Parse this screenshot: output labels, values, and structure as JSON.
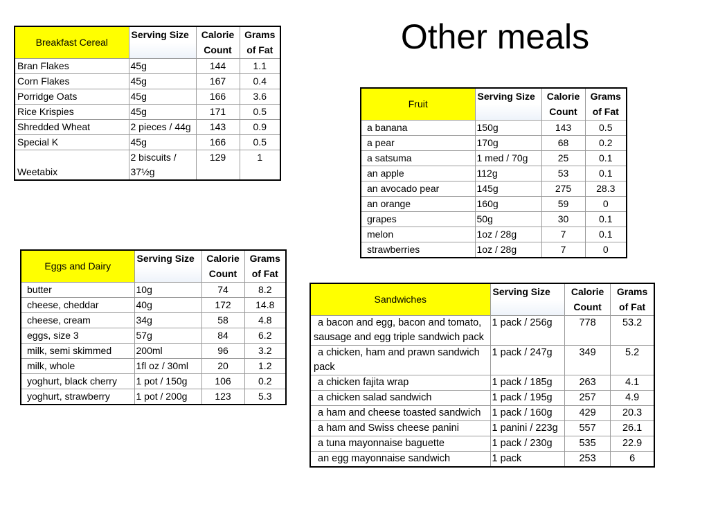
{
  "title": "Other meals",
  "tables": {
    "cereal": {
      "headers": [
        "Breakfast Cereal",
        "Serving Size",
        "Calorie Count",
        "Grams of Fat"
      ],
      "rows": [
        [
          "Bran Flakes",
          "45g",
          "144",
          "1.1"
        ],
        [
          "Corn Flakes",
          "45g",
          "167",
          "0.4"
        ],
        [
          "Porridge Oats",
          "45g",
          "166",
          "3.6"
        ],
        [
          "Rice Krispies",
          "45g",
          "171",
          "0.5"
        ],
        [
          "Shredded Wheat",
          "2 pieces / 44g",
          "143",
          "0.9"
        ],
        [
          "Special K",
          "45g",
          "166",
          "0.5"
        ],
        [
          "Weetabix",
          "2 biscuits / 37½g",
          "129",
          "1"
        ]
      ]
    },
    "fruit": {
      "headers": [
        "Fruit",
        "Serving Size",
        "Calorie Count",
        "Grams of Fat"
      ],
      "rows": [
        [
          "a banana",
          "150g",
          "143",
          "0.5"
        ],
        [
          "a pear",
          "170g",
          "68",
          "0.2"
        ],
        [
          "a satsuma",
          "1 med / 70g",
          "25",
          "0.1"
        ],
        [
          "an apple",
          "112g",
          "53",
          "0.1"
        ],
        [
          "an avocado pear",
          "145g",
          "275",
          "28.3"
        ],
        [
          "an orange",
          "160g",
          "59",
          "0"
        ],
        [
          "grapes",
          "50g",
          "30",
          "0.1"
        ],
        [
          "melon",
          "1oz / 28g",
          "7",
          "0.1"
        ],
        [
          "strawberries",
          "1oz / 28g",
          "7",
          "0"
        ]
      ]
    },
    "eggs": {
      "headers": [
        "Eggs and Dairy",
        "Serving Size",
        "Calorie Count",
        "Grams of Fat"
      ],
      "rows": [
        [
          "butter",
          "10g",
          "74",
          "8.2"
        ],
        [
          "cheese, cheddar",
          "40g",
          "172",
          "14.8"
        ],
        [
          "cheese, cream",
          "34g",
          "58",
          "4.8"
        ],
        [
          "eggs, size 3",
          "57g",
          "84",
          "6.2"
        ],
        [
          "milk, semi skimmed",
          "200ml",
          "96",
          "3.2"
        ],
        [
          "milk, whole",
          "1fl oz / 30ml",
          "20",
          "1.2"
        ],
        [
          "yoghurt, black cherry",
          "1 pot / 150g",
          "106",
          "0.2"
        ],
        [
          "yoghurt, strawberry",
          "1 pot / 200g",
          "123",
          "5.3"
        ]
      ]
    },
    "sandwiches": {
      "headers": [
        "Sandwiches",
        "Serving Size",
        "Calorie Count",
        "Grams of Fat"
      ],
      "rows": [
        [
          "a bacon and egg, bacon and tomato, sausage and egg triple sandwich pack",
          "1 pack / 256g",
          "778",
          "53.2"
        ],
        [
          "a chicken, ham and prawn sandwich pack",
          "1 pack / 247g",
          "349",
          "5.2"
        ],
        [
          "a chicken fajita wrap",
          "1 pack / 185g",
          "263",
          "4.1"
        ],
        [
          "a chicken salad sandwich",
          "1 pack / 195g",
          "257",
          "4.9"
        ],
        [
          "a ham and cheese toasted sandwich",
          "1 pack / 160g",
          "429",
          "20.3"
        ],
        [
          "a ham and Swiss cheese panini",
          "1 panini / 223g",
          "557",
          "26.1"
        ],
        [
          "a tuna mayonnaise baguette",
          "1 pack / 230g",
          "535",
          "22.9"
        ],
        [
          "an egg mayonnaise sandwich",
          "1 pack",
          "253",
          "6"
        ]
      ]
    }
  }
}
